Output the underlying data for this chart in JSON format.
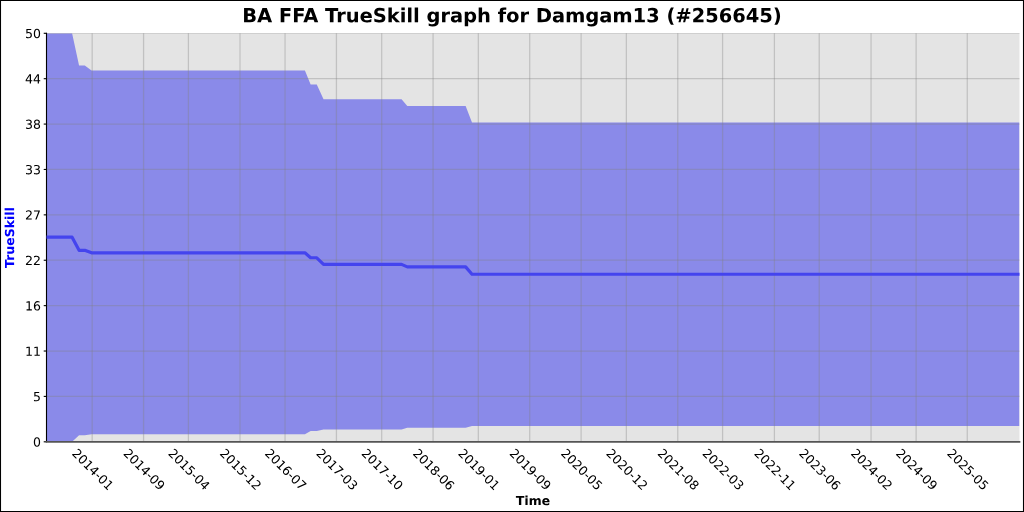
{
  "chart_data": {
    "type": "line",
    "title": "BA FFA TrueSkill graph for Damgam13 (#256645)",
    "xlabel": "Time",
    "ylabel": "TrueSkill",
    "x": [
      "2013-05-30",
      "2013-09-28",
      "2013-10-31",
      "2013-11-27",
      "2013-12-29",
      "2016-10-03",
      "2016-10-30",
      "2016-11-28",
      "2016-12-30",
      "2018-01-03",
      "2018-01-30",
      "2018-11-02",
      "2018-12-02",
      "2026-01-03"
    ],
    "series": [
      {
        "color": "#4444ee",
        "values": [
          24.8,
          24.8,
          23.2,
          23.2,
          22.9,
          22.9,
          22.3,
          22.3,
          21.5,
          21.5,
          21.2,
          21.2,
          20.3,
          20.3
        ],
        "lower": [
          0,
          0,
          0.8,
          0.8,
          0.9,
          0.9,
          1.3,
          1.3,
          1.5,
          1.5,
          1.7,
          1.7,
          1.9,
          1.9
        ],
        "upper": [
          49.5,
          49.5,
          45.6,
          45.6,
          45.0,
          45.0,
          43.3,
          43.3,
          41.5,
          41.5,
          40.7,
          40.7,
          38.7,
          38.7
        ]
      }
    ],
    "xlim": [
      "2013-05-30",
      "2026-01-03"
    ],
    "xticks": [
      "2014-01",
      "2014-09",
      "2015-04",
      "2015-12",
      "2016-07",
      "2017-03",
      "2017-10",
      "2018-06",
      "2019-01",
      "2019-09",
      "2020-05",
      "2020-12",
      "2021-08",
      "2022-03",
      "2022-11",
      "2023-06",
      "2024-02",
      "2024-09",
      "2025-05"
    ],
    "ylim": [
      0,
      49.5
    ],
    "yticks": [
      0,
      {
        "value": 5.5,
        "label": "5"
      },
      11,
      {
        "value": 16.5,
        "label": "16"
      },
      22,
      {
        "value": 27.5,
        "label": "27"
      },
      33,
      {
        "value": 38.5,
        "label": "38"
      },
      44,
      {
        "value": 49.5,
        "label": "50"
      }
    ],
    "grid": true
  }
}
